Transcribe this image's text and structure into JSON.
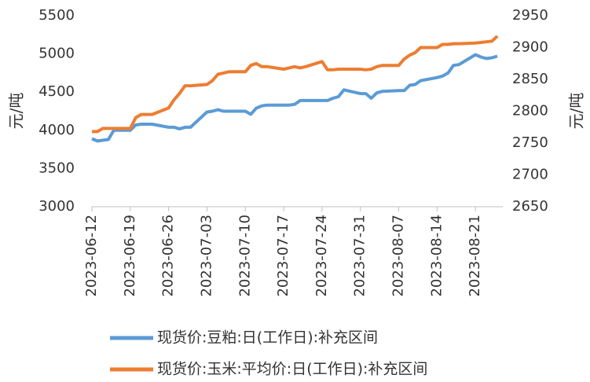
{
  "chart_data": {
    "type": "line",
    "x": [
      "2023-06-12",
      "2023-06-13",
      "2023-06-14",
      "2023-06-15",
      "2023-06-16",
      "2023-06-19",
      "2023-06-20",
      "2023-06-21",
      "2023-06-22",
      "2023-06-23",
      "2023-06-26",
      "2023-06-27",
      "2023-06-28",
      "2023-06-29",
      "2023-06-30",
      "2023-07-03",
      "2023-07-04",
      "2023-07-05",
      "2023-07-06",
      "2023-07-07",
      "2023-07-10",
      "2023-07-11",
      "2023-07-12",
      "2023-07-13",
      "2023-07-14",
      "2023-07-17",
      "2023-07-18",
      "2023-07-19",
      "2023-07-20",
      "2023-07-21",
      "2023-07-24",
      "2023-07-25",
      "2023-07-26",
      "2023-07-27",
      "2023-07-28",
      "2023-07-31",
      "2023-08-01",
      "2023-08-02",
      "2023-08-03",
      "2023-08-04",
      "2023-08-07",
      "2023-08-08",
      "2023-08-09",
      "2023-08-10",
      "2023-08-11",
      "2023-08-14",
      "2023-08-15",
      "2023-08-16",
      "2023-08-17",
      "2023-08-18",
      "2023-08-21",
      "2023-08-22",
      "2023-08-23",
      "2023-08-24",
      "2023-08-25"
    ],
    "series": [
      {
        "name": "现货价:豆粕:日(工作日):补充区间",
        "color": "#5b9bd5",
        "axis": "y",
        "values": [
          3890,
          3860,
          3870,
          3880,
          4000,
          4000,
          4070,
          4080,
          4080,
          4080,
          4040,
          4040,
          4020,
          4040,
          4040,
          4240,
          4250,
          4270,
          4250,
          4250,
          4250,
          4210,
          4290,
          4320,
          4330,
          4330,
          4330,
          4340,
          4390,
          4390,
          4390,
          4390,
          4420,
          4440,
          4530,
          4480,
          4480,
          4420,
          4490,
          4510,
          4520,
          4520,
          4590,
          4600,
          4650,
          4690,
          4710,
          4750,
          4850,
          4860,
          4990,
          4960,
          4940,
          4950,
          4970
        ]
      },
      {
        "name": "现货价:玉米:平均价:日(工作日):补充区间",
        "color": "#ed7d31",
        "axis": "y2",
        "values": [
          2768,
          2768,
          2773,
          2773,
          2773,
          2773,
          2790,
          2795,
          2795,
          2795,
          2805,
          2818,
          2828,
          2840,
          2840,
          2842,
          2848,
          2858,
          2860,
          2862,
          2862,
          2872,
          2875,
          2870,
          2870,
          2866,
          2868,
          2870,
          2868,
          2870,
          2878,
          2865,
          2865,
          2866,
          2866,
          2866,
          2865,
          2866,
          2870,
          2872,
          2872,
          2882,
          2888,
          2892,
          2900,
          2900,
          2905,
          2905,
          2906,
          2906,
          2907,
          2908,
          2909,
          2910,
          2918
        ]
      }
    ],
    "xlim": [
      "2023-06-12",
      "2023-08-26"
    ],
    "xticks": [
      "2023-06-12",
      "2023-06-19",
      "2023-06-26",
      "2023-07-03",
      "2023-07-10",
      "2023-07-17",
      "2023-07-24",
      "2023-07-31",
      "2023-08-07",
      "2023-08-14",
      "2023-08-21"
    ],
    "ylim": [
      3000,
      5500
    ],
    "yticks": [
      3000,
      3500,
      4000,
      4500,
      5000,
      5500
    ],
    "y2lim": [
      2650,
      2950
    ],
    "y2ticks": [
      2650,
      2700,
      2750,
      2800,
      2850,
      2900,
      2950
    ],
    "ylabel": "元/吨",
    "y2label": "元/吨"
  }
}
